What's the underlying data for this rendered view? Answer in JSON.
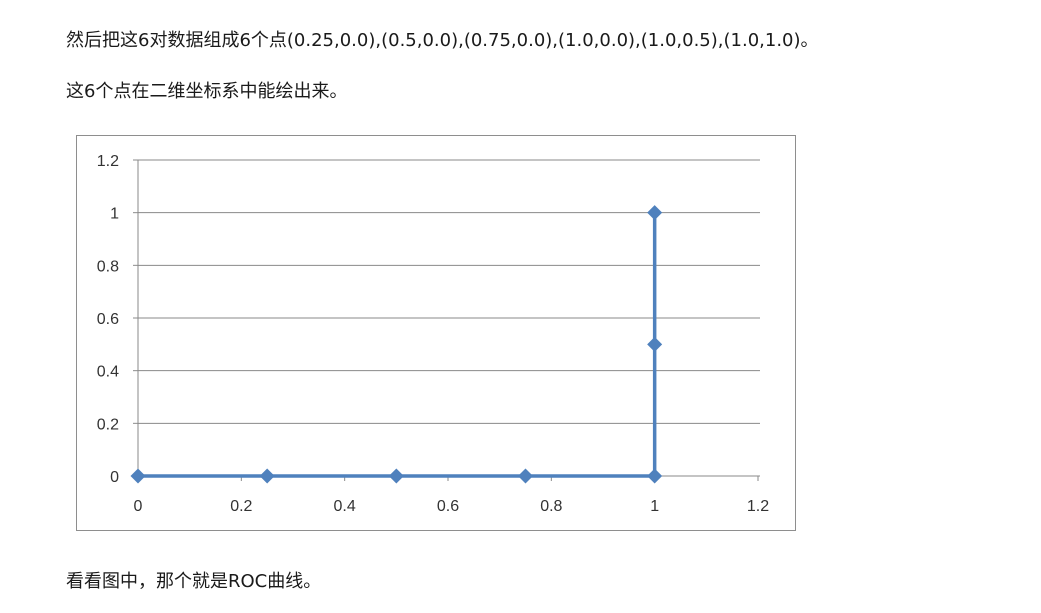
{
  "text": {
    "p1": "然后把这6对数据组成6个点(0.25,0.0),(0.5,0.0),(0.75,0.0),(1.0,0.0),(1.0,0.5),(1.0,1.0)。",
    "p2": "这6个点在二维坐标系中能绘出来。",
    "p3": "看看图中，那个就是ROC曲线。"
  },
  "chart_data": {
    "type": "line",
    "x": [
      0,
      0.25,
      0.5,
      0.75,
      1.0,
      1.0,
      1.0
    ],
    "y": [
      0,
      0,
      0,
      0,
      0,
      0.5,
      1.0
    ],
    "xlim": [
      0,
      1.2
    ],
    "ylim": [
      0,
      1.2
    ],
    "xticks": [
      0,
      0.2,
      0.4,
      0.6,
      0.8,
      1,
      1.2
    ],
    "yticks": [
      0,
      0.2,
      0.4,
      0.6,
      0.8,
      1,
      1.2
    ],
    "xtick_labels": [
      "0",
      "0.2",
      "0.4",
      "0.6",
      "0.8",
      "1",
      "1.2"
    ],
    "ytick_labels": [
      "0",
      "0.2",
      "0.4",
      "0.6",
      "0.8",
      "1",
      "1.2"
    ],
    "grid": "horizontal",
    "marker": "diamond",
    "line_color": "#4f81bd",
    "title": "",
    "xlabel": "",
    "ylabel": ""
  }
}
